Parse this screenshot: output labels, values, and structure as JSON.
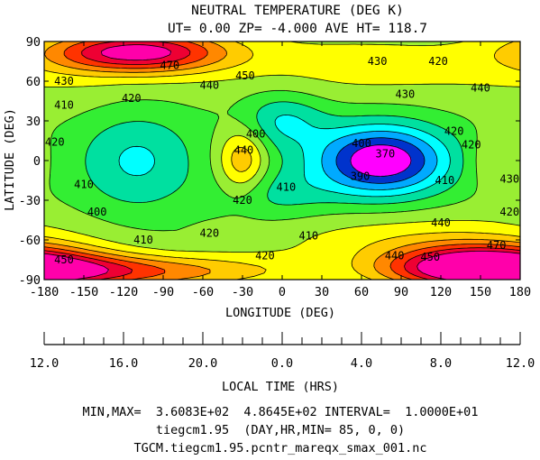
{
  "chart_data": {
    "type": "contour",
    "title": "NEUTRAL TEMPERATURE (DEG K)",
    "subtitle": "UT= 0.00 ZP= -4.000 AVE HT= 118.7",
    "xlabel": "LONGITUDE (DEG)",
    "ylabel": "LATITUDE (DEG)",
    "xlim": [
      -180,
      180
    ],
    "ylim": [
      -90,
      90
    ],
    "xticks": [
      -180,
      -150,
      -120,
      -90,
      -60,
      -30,
      0,
      30,
      60,
      90,
      120,
      150,
      180
    ],
    "yticks": [
      -90,
      -60,
      -30,
      0,
      30,
      60,
      90
    ],
    "grid": false,
    "min": 360.83,
    "max": 486.45,
    "interval": 10,
    "contour_levels": [
      370,
      380,
      390,
      400,
      410,
      420,
      430,
      440,
      450,
      460,
      470,
      480
    ],
    "level_colors": [
      "#ff00ff",
      "#0033cc",
      "#00aaff",
      "#00ffff",
      "#00e0a0",
      "#33ee33",
      "#99ee33",
      "#ffff00",
      "#ffcc00",
      "#ff8800",
      "#ff3300",
      "#ee0033",
      "#ff00aa"
    ],
    "features": [
      {
        "kind": "min",
        "lon": 75,
        "lat": 0,
        "value": 361
      },
      {
        "kind": "min",
        "lon": -110,
        "lat": 0,
        "value": 398
      },
      {
        "kind": "min",
        "lon": 0,
        "lat": 30,
        "value": 398
      },
      {
        "kind": "min",
        "lon": -5,
        "lat": -25,
        "value": 405
      },
      {
        "kind": "max",
        "lon": -110,
        "lat": 82,
        "value": 485
      },
      {
        "kind": "max",
        "lon": 152,
        "lat": -80,
        "value": 486
      },
      {
        "kind": "max",
        "lon": -30,
        "lat": 0,
        "value": 448
      },
      {
        "kind": "max",
        "lon": 160,
        "lat": 0,
        "value": 432
      }
    ],
    "contour_labels": [
      {
        "lon": -85,
        "lat": 72,
        "text": "470"
      },
      {
        "lon": -165,
        "lat": 60,
        "text": "430"
      },
      {
        "lon": -28,
        "lat": 64,
        "text": "450"
      },
      {
        "lon": -55,
        "lat": 57,
        "text": "440"
      },
      {
        "lon": 72,
        "lat": 75,
        "text": "430"
      },
      {
        "lon": 118,
        "lat": 75,
        "text": "420"
      },
      {
        "lon": 150,
        "lat": 55,
        "text": "440"
      },
      {
        "lon": 93,
        "lat": 50,
        "text": "430"
      },
      {
        "lon": -165,
        "lat": 42,
        "text": "410"
      },
      {
        "lon": -114,
        "lat": 47,
        "text": "420"
      },
      {
        "lon": -20,
        "lat": 20,
        "text": "400"
      },
      {
        "lon": -29,
        "lat": 8,
        "text": "440"
      },
      {
        "lon": 130,
        "lat": 22,
        "text": "420"
      },
      {
        "lon": 143,
        "lat": 12,
        "text": "420"
      },
      {
        "lon": -172,
        "lat": 14,
        "text": "420"
      },
      {
        "lon": 60,
        "lat": 13,
        "text": "400"
      },
      {
        "lon": 78,
        "lat": 5,
        "text": "370"
      },
      {
        "lon": 59,
        "lat": -12,
        "text": "390"
      },
      {
        "lon": -150,
        "lat": -18,
        "text": "410"
      },
      {
        "lon": 3,
        "lat": -20,
        "text": "410"
      },
      {
        "lon": -30,
        "lat": -30,
        "text": "420"
      },
      {
        "lon": 123,
        "lat": -15,
        "text": "410"
      },
      {
        "lon": 172,
        "lat": -14,
        "text": "430"
      },
      {
        "lon": 172,
        "lat": -39,
        "text": "420"
      },
      {
        "lon": -140,
        "lat": -39,
        "text": "400"
      },
      {
        "lon": -105,
        "lat": -60,
        "text": "410"
      },
      {
        "lon": -55,
        "lat": -55,
        "text": "420"
      },
      {
        "lon": 20,
        "lat": -57,
        "text": "410"
      },
      {
        "lon": -13,
        "lat": -72,
        "text": "420"
      },
      {
        "lon": 85,
        "lat": -72,
        "text": "440"
      },
      {
        "lon": 112,
        "lat": -73,
        "text": "450"
      },
      {
        "lon": 120,
        "lat": -47,
        "text": "440"
      },
      {
        "lon": -165,
        "lat": -75,
        "text": "450"
      },
      {
        "lon": 162,
        "lat": -64,
        "text": "470"
      }
    ],
    "local_time": {
      "label": "LOCAL TIME (HRS)",
      "ticks": [
        {
          "text": "12.0",
          "lon": -180
        },
        {
          "text": "16.0",
          "lon": -120
        },
        {
          "text": "20.0",
          "lon": -60
        },
        {
          "text": "0.0",
          "lon": 0
        },
        {
          "text": "4.0",
          "lon": 60
        },
        {
          "text": "8.0",
          "lon": 120
        },
        {
          "text": "12.0",
          "lon": 180
        }
      ]
    }
  },
  "footer": {
    "line1": "MIN,MAX=  3.6083E+02  4.8645E+02 INTERVAL=  1.0000E+01",
    "line2": "tiegcm1.95  (DAY,HR,MIN= 85, 0, 0)",
    "line3": "TGCM.tiegcm1.95.pcntr_mareqx_smax_001.nc"
  }
}
